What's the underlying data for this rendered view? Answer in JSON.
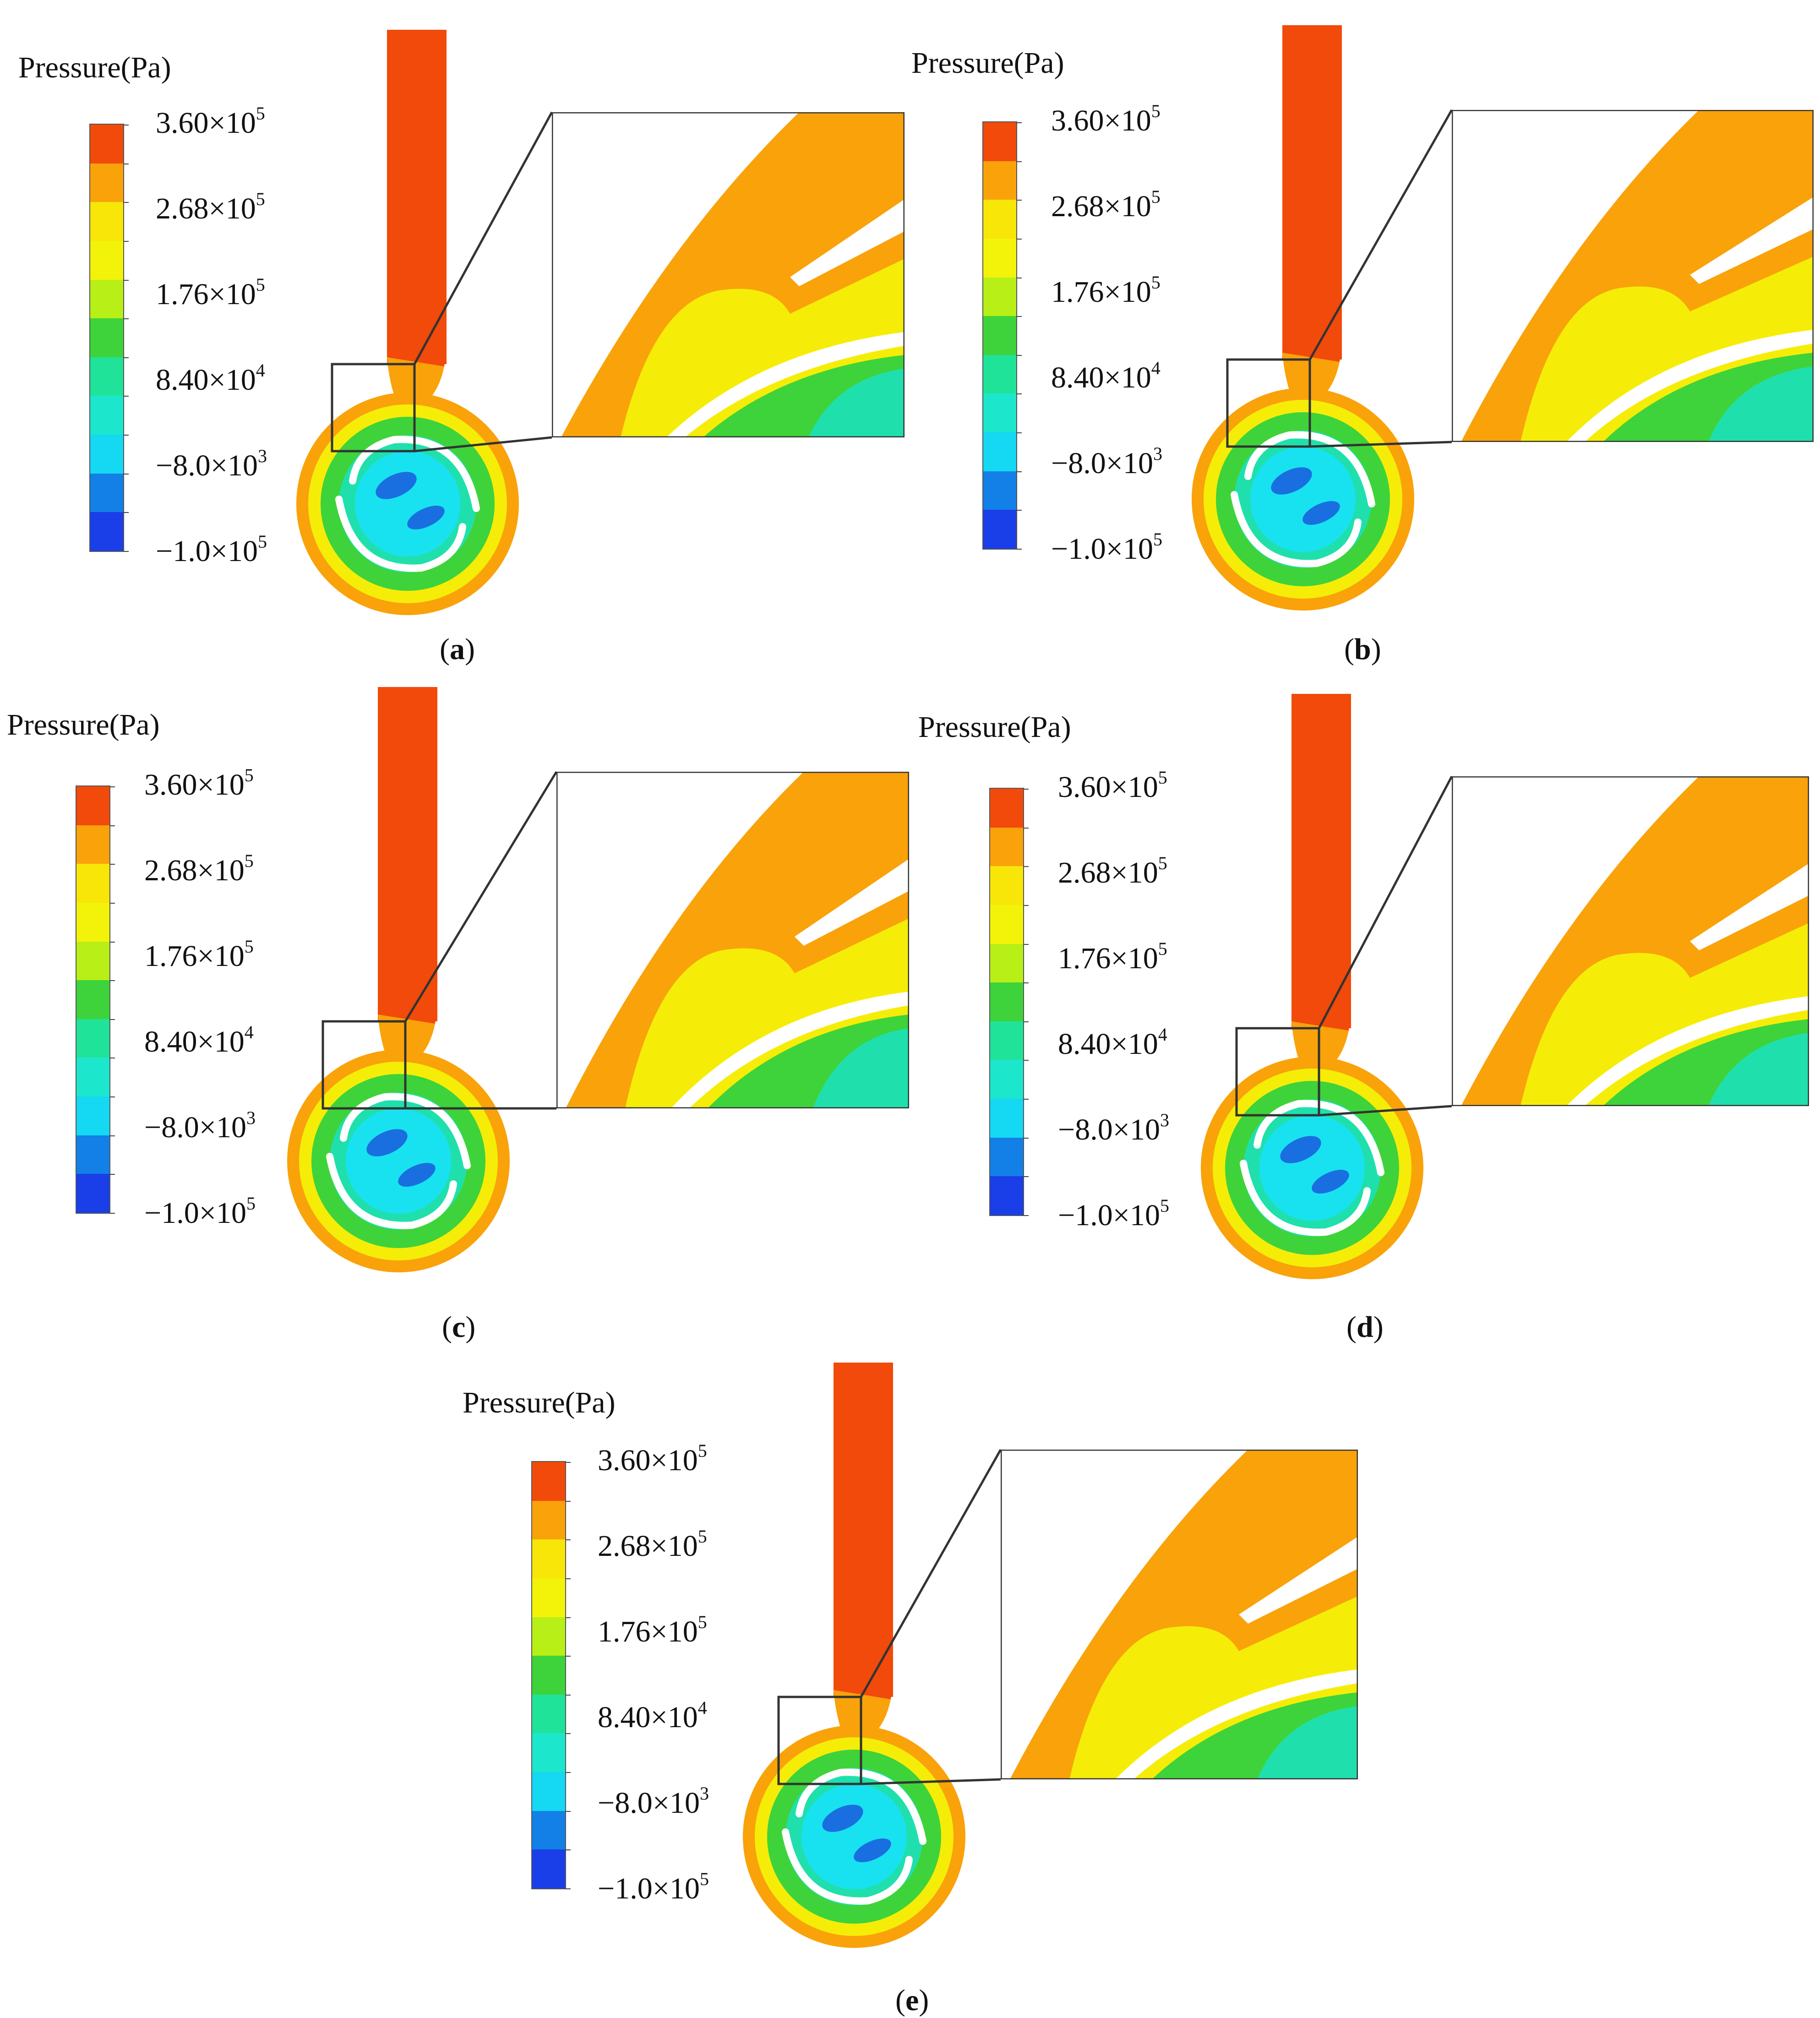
{
  "colorbar": {
    "title": "Pressure(Pa)",
    "labels": [
      {
        "mant": "3.60×10",
        "exp": "5"
      },
      {
        "mant": "2.68×10",
        "exp": "5"
      },
      {
        "mant": "1.76×10",
        "exp": "5"
      },
      {
        "mant": "8.40×10",
        "exp": "4"
      },
      {
        "mant": "−8.0×10",
        "exp": "3"
      },
      {
        "mant": "−1.0×10",
        "exp": "5"
      }
    ],
    "colors": [
      "#f14a0a",
      "#f9a20a",
      "#f7e607",
      "#f3f30a",
      "#b7ef16",
      "#3ed33a",
      "#20e39a",
      "#1ce7cd",
      "#15d8f3",
      "#1280e6",
      "#1a3ee8"
    ]
  },
  "panels": [
    {
      "label": "a"
    },
    {
      "label": "b"
    },
    {
      "label": "c"
    },
    {
      "label": "d"
    },
    {
      "label": "e"
    }
  ],
  "flow_colors": {
    "inlet": "#f14a0a",
    "outer": "#f9a20a",
    "mid": "#f5ed08",
    "green": "#3ed33a",
    "teal": "#1fe0ad",
    "cyan": "#18e2f0",
    "blue": "#1a6fe0",
    "blade": "#ffffff",
    "frame": "#333333"
  }
}
